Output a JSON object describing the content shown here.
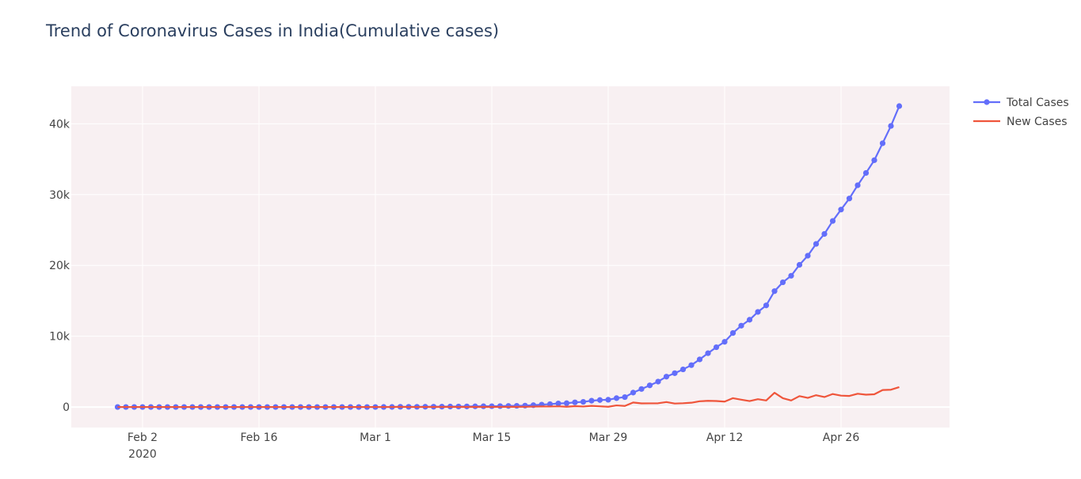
{
  "chart_data": {
    "type": "line",
    "title": "Trend of Coronavirus Cases in India(Cumulative cases)",
    "xlabel": "",
    "ylabel": "",
    "x_start": "2020-01-30",
    "x": [
      "2020-01-30",
      "2020-01-31",
      "2020-02-01",
      "2020-02-02",
      "2020-02-03",
      "2020-02-04",
      "2020-02-05",
      "2020-02-06",
      "2020-02-07",
      "2020-02-08",
      "2020-02-09",
      "2020-02-10",
      "2020-02-11",
      "2020-02-12",
      "2020-02-13",
      "2020-02-14",
      "2020-02-15",
      "2020-02-16",
      "2020-02-17",
      "2020-02-18",
      "2020-02-19",
      "2020-02-20",
      "2020-02-21",
      "2020-02-22",
      "2020-02-23",
      "2020-02-24",
      "2020-02-25",
      "2020-02-26",
      "2020-02-27",
      "2020-02-28",
      "2020-02-29",
      "2020-03-01",
      "2020-03-02",
      "2020-03-03",
      "2020-03-04",
      "2020-03-05",
      "2020-03-06",
      "2020-03-07",
      "2020-03-08",
      "2020-03-09",
      "2020-03-10",
      "2020-03-11",
      "2020-03-12",
      "2020-03-13",
      "2020-03-14",
      "2020-03-15",
      "2020-03-16",
      "2020-03-17",
      "2020-03-18",
      "2020-03-19",
      "2020-03-20",
      "2020-03-21",
      "2020-03-22",
      "2020-03-23",
      "2020-03-24",
      "2020-03-25",
      "2020-03-26",
      "2020-03-27",
      "2020-03-28",
      "2020-03-29",
      "2020-03-30",
      "2020-03-31",
      "2020-04-01",
      "2020-04-02",
      "2020-04-03",
      "2020-04-04",
      "2020-04-05",
      "2020-04-06",
      "2020-04-07",
      "2020-04-08",
      "2020-04-09",
      "2020-04-10",
      "2020-04-11",
      "2020-04-12",
      "2020-04-13",
      "2020-04-14",
      "2020-04-15",
      "2020-04-16",
      "2020-04-17",
      "2020-04-18",
      "2020-04-19",
      "2020-04-20",
      "2020-04-21",
      "2020-04-22",
      "2020-04-23",
      "2020-04-24",
      "2020-04-25",
      "2020-04-26",
      "2020-04-27",
      "2020-04-28",
      "2020-04-29",
      "2020-04-30",
      "2020-05-01",
      "2020-05-02",
      "2020-05-03"
    ],
    "series": [
      {
        "name": "Total Cases",
        "color": "#636efa",
        "mode": "lines+markers",
        "values": [
          1,
          1,
          1,
          2,
          3,
          3,
          3,
          3,
          3,
          3,
          3,
          3,
          3,
          3,
          3,
          3,
          3,
          3,
          3,
          3,
          3,
          3,
          3,
          3,
          3,
          3,
          3,
          3,
          3,
          3,
          3,
          3,
          5,
          6,
          28,
          30,
          31,
          34,
          39,
          48,
          63,
          71,
          81,
          91,
          102,
          112,
          126,
          146,
          171,
          198,
          256,
          334,
          403,
          499,
          536,
          657,
          727,
          887,
          987,
          1024,
          1251,
          1397,
          2033,
          2543,
          3059,
          3588,
          4289,
          4778,
          5311,
          5916,
          6725,
          7598,
          8446,
          9205,
          10453,
          11487,
          12322,
          13430,
          14352,
          16365,
          17615,
          18539,
          20080,
          21370,
          23039,
          24447,
          26283,
          27890,
          29451,
          31324,
          33062,
          34862,
          37257,
          39699,
          42505
        ]
      },
      {
        "name": "New Cases",
        "color": "#ef553b",
        "mode": "lines",
        "values": [
          1,
          0,
          0,
          1,
          1,
          0,
          0,
          0,
          0,
          0,
          0,
          0,
          0,
          0,
          0,
          0,
          0,
          0,
          0,
          0,
          0,
          0,
          0,
          0,
          0,
          0,
          0,
          0,
          0,
          0,
          0,
          0,
          2,
          1,
          22,
          2,
          1,
          3,
          5,
          9,
          15,
          8,
          10,
          10,
          11,
          10,
          14,
          20,
          25,
          27,
          58,
          78,
          69,
          96,
          37,
          121,
          70,
          160,
          100,
          37,
          227,
          146,
          636,
          510,
          516,
          529,
          701,
          489,
          533,
          605,
          809,
          873,
          848,
          759,
          1248,
          1034,
          835,
          1108,
          922,
          2013,
          1250,
          924,
          1541,
          1290,
          1669,
          1408,
          1836,
          1607,
          1561,
          1873,
          1738,
          1800,
          2395,
          2442,
          2806
        ]
      }
    ],
    "ylim": [
      -2900,
      45300
    ],
    "y_ticks": [
      0,
      10000,
      20000,
      30000,
      40000
    ],
    "y_tick_labels": [
      "0",
      "10k",
      "20k",
      "30k",
      "40k"
    ],
    "x_ticks": [
      "2020-02-02",
      "2020-02-16",
      "2020-03-01",
      "2020-03-15",
      "2020-03-29",
      "2020-04-12",
      "2020-04-26"
    ],
    "x_tick_labels": [
      "Feb 2",
      "Feb 16",
      "Mar 1",
      "Mar 15",
      "Mar 29",
      "Apr 12",
      "Apr 26"
    ],
    "x_tick_sublabel": "2020",
    "grid": true,
    "legend_position": "top-right",
    "plot_background": "#f8f0f2"
  }
}
